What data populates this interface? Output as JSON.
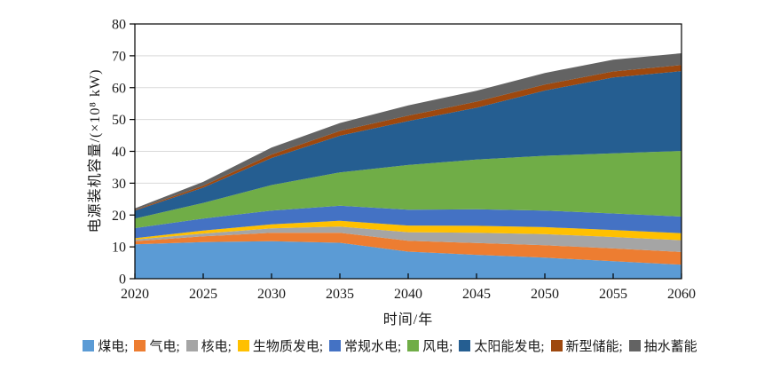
{
  "chart_data": {
    "type": "area",
    "stacked": true,
    "title": "",
    "xlabel": "时间/年",
    "ylabel": "电源装机容量/(×10⁸ kW)",
    "x": [
      2020,
      2025,
      2030,
      2035,
      2040,
      2045,
      2050,
      2055,
      2060
    ],
    "xticks": [
      2020,
      2025,
      2030,
      2035,
      2040,
      2045,
      2050,
      2055,
      2060
    ],
    "ylim": [
      0,
      80
    ],
    "yticks": [
      0,
      10,
      20,
      30,
      40,
      50,
      60,
      70,
      80
    ],
    "grid": true,
    "gridline_color": "#d9d9d9",
    "axis_color": "#000000",
    "legend_position": "bottom",
    "series": [
      {
        "key": "coal",
        "name": "煤电",
        "color": "#5B9BD5",
        "values": [
          10.8,
          11.5,
          11.8,
          11.3,
          8.5,
          7.5,
          6.6,
          5.5,
          4.4
        ]
      },
      {
        "key": "gas",
        "name": "气电",
        "color": "#ED7D31",
        "values": [
          1.0,
          1.8,
          2.6,
          3.1,
          3.4,
          3.7,
          3.9,
          4.0,
          4.0
        ]
      },
      {
        "key": "nuclear",
        "name": "核电",
        "color": "#A5A5A5",
        "values": [
          0.5,
          0.9,
          1.4,
          2.0,
          2.7,
          3.2,
          3.5,
          3.6,
          3.7
        ]
      },
      {
        "key": "biomass",
        "name": "生物质发电",
        "color": "#FFC000",
        "values": [
          0.4,
          0.9,
          1.3,
          1.8,
          2.1,
          2.2,
          2.2,
          2.2,
          2.2
        ]
      },
      {
        "key": "hydro",
        "name": "常规水电",
        "color": "#4472C4",
        "values": [
          3.2,
          3.8,
          4.3,
          4.7,
          5.0,
          5.2,
          5.2,
          5.2,
          5.2
        ]
      },
      {
        "key": "wind",
        "name": "风电",
        "color": "#70AD47",
        "values": [
          3.0,
          4.9,
          8.0,
          10.5,
          14.0,
          15.6,
          17.2,
          18.9,
          20.6
        ]
      },
      {
        "key": "solar",
        "name": "太阳能发电",
        "color": "#255E91",
        "values": [
          2.5,
          4.8,
          8.5,
          11.5,
          13.8,
          16.3,
          20.5,
          23.8,
          25.1
        ]
      },
      {
        "key": "new-storage",
        "name": "新型储能",
        "color": "#9E480E",
        "values": [
          0.2,
          0.6,
          1.1,
          1.5,
          1.7,
          1.9,
          1.9,
          1.9,
          1.9
        ]
      },
      {
        "key": "pumped-storage",
        "name": "抽水蓄能",
        "color": "#636363",
        "values": [
          0.5,
          1.2,
          2.2,
          2.5,
          3.2,
          3.4,
          3.6,
          3.7,
          3.7
        ]
      }
    ]
  },
  "legend": {
    "items": [
      {
        "label": "煤电;",
        "color": "#5B9BD5"
      },
      {
        "label": "气电;",
        "color": "#ED7D31"
      },
      {
        "label": "核电;",
        "color": "#A5A5A5"
      },
      {
        "label": "生物质发电;",
        "color": "#FFC000"
      },
      {
        "label": "常规水电;",
        "color": "#4472C4"
      },
      {
        "label": "风电;",
        "color": "#70AD47"
      },
      {
        "label": "太阳能发电;",
        "color": "#255E91"
      },
      {
        "label": "新型储能;",
        "color": "#9E480E"
      },
      {
        "label": "抽水蓄能",
        "color": "#636363"
      }
    ]
  }
}
